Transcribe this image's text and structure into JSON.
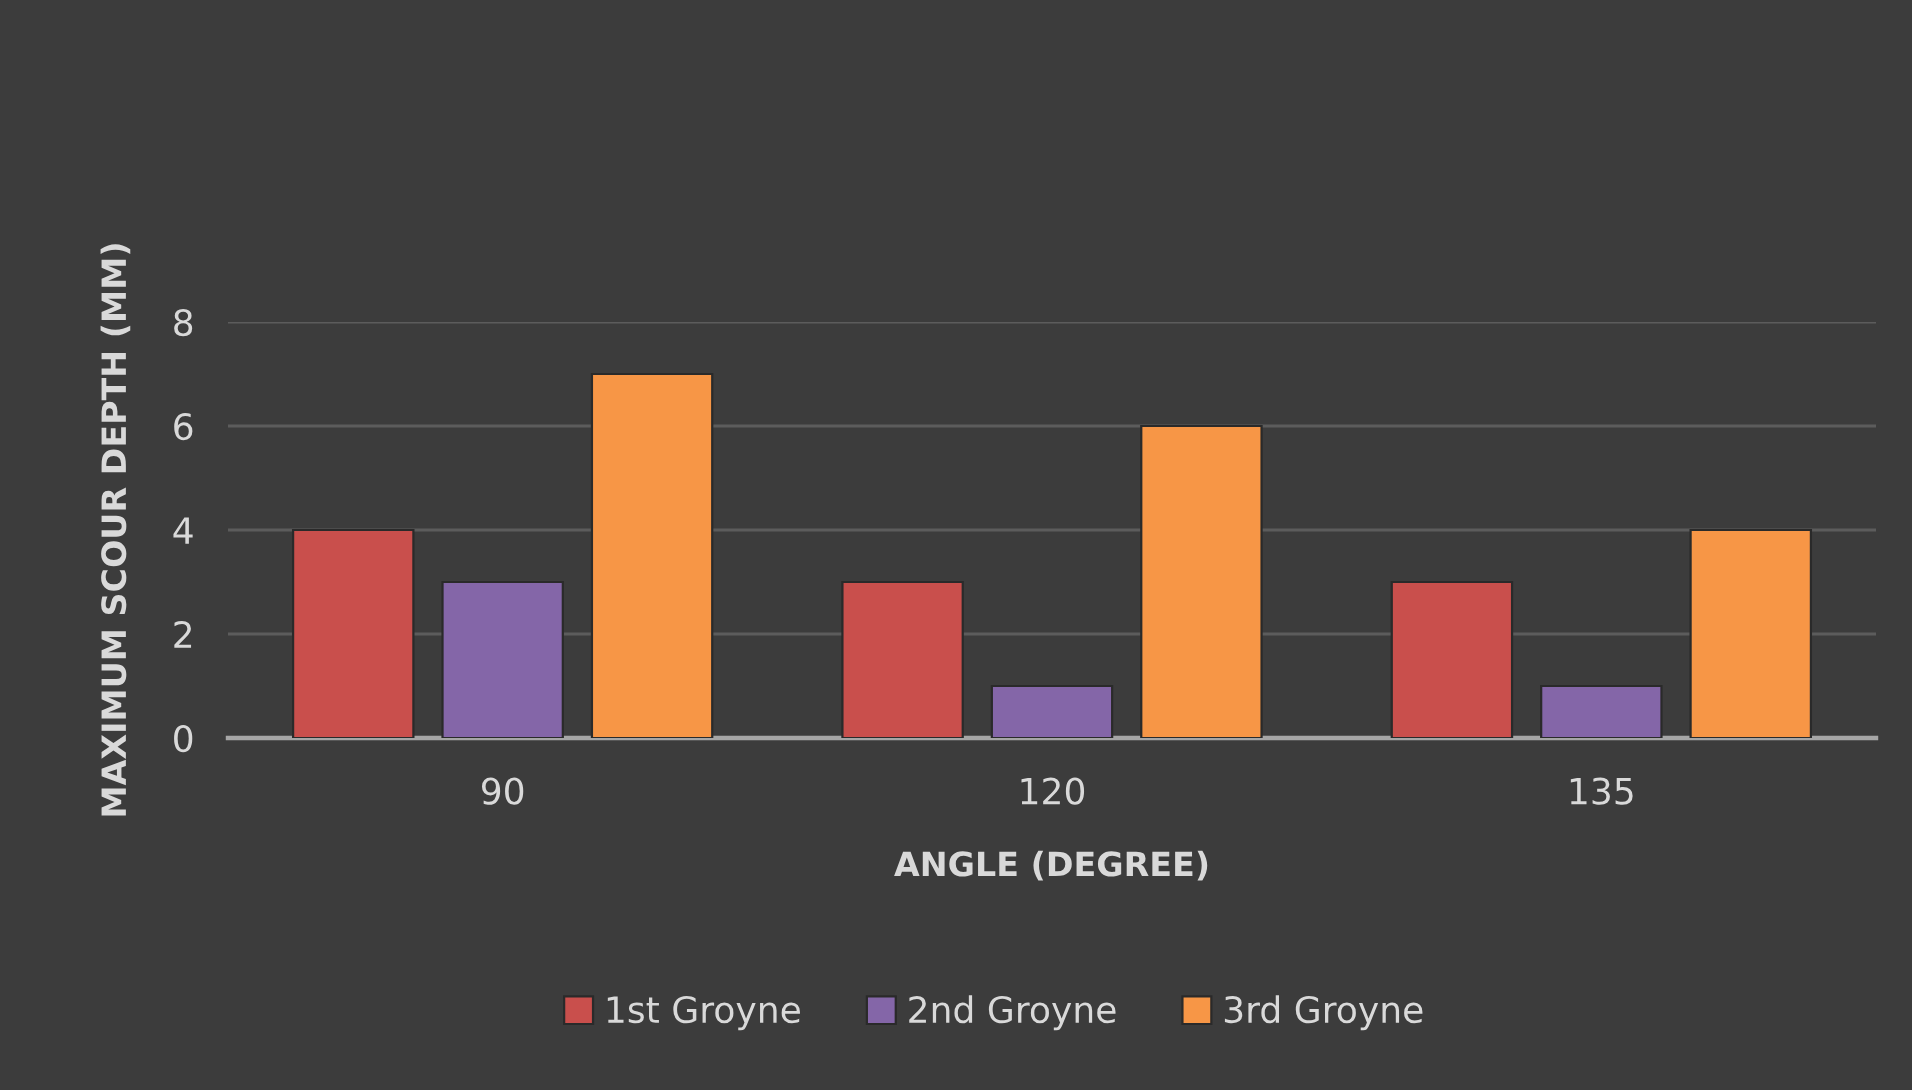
{
  "chart_data": {
    "type": "bar",
    "xlabel": "ANGLE (DEGREE)",
    "ylabel": "MAXIMUM SCOUR DEPTH (MM)",
    "categories": [
      "90",
      "120",
      "135"
    ],
    "series": [
      {
        "name": "1st Groyne",
        "color": "#c94f4c",
        "values": [
          4,
          3,
          3
        ]
      },
      {
        "name": "2nd Groyne",
        "color": "#8466a8",
        "values": [
          3,
          1,
          1
        ]
      },
      {
        "name": "3rd Groyne",
        "color": "#f79646",
        "values": [
          7,
          6,
          4
        ]
      }
    ],
    "ylim": [
      0,
      8
    ],
    "yticks": [
      0,
      2,
      4,
      6,
      8
    ],
    "grid": "y",
    "legend": "bottom"
  }
}
